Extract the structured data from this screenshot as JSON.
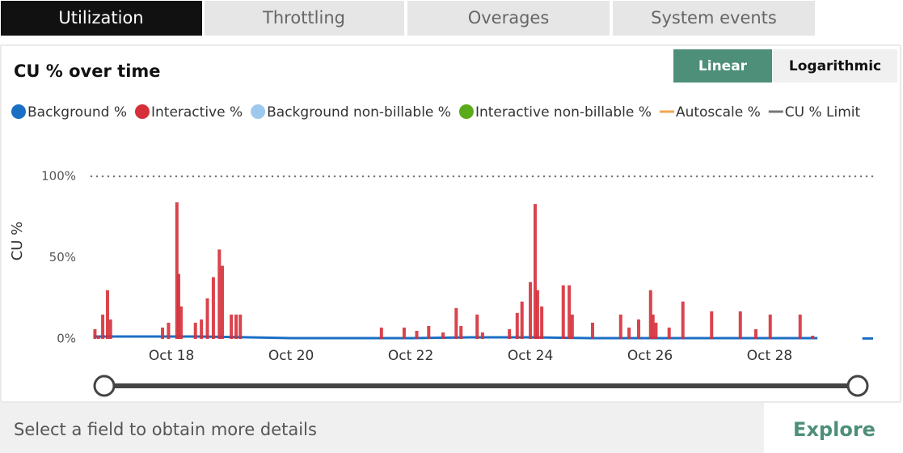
{
  "tabs": [
    "Utilization",
    "Throttling",
    "Overages",
    "System events"
  ],
  "chart_data": {
    "type": "bar",
    "title": "CU % over time",
    "scale_options": [
      "Linear",
      "Logarithmic"
    ],
    "log_scale": false,
    "y_label": "CU %",
    "xlim": [
      16.66,
      29.73
    ],
    "xticks": [
      {
        "value": 18,
        "label": "Oct 18"
      },
      {
        "value": 20,
        "label": "Oct 20"
      },
      {
        "value": 22,
        "label": "Oct 22"
      },
      {
        "value": 24,
        "label": "Oct 24"
      },
      {
        "value": 26,
        "label": "Oct 26"
      },
      {
        "value": 28,
        "label": "Oct 28"
      }
    ],
    "ylim": [
      0,
      100
    ],
    "yticks": [
      {
        "value": 0,
        "label": "0%"
      },
      {
        "value": 50,
        "label": "50%"
      },
      {
        "value": 100,
        "label": "100%"
      }
    ],
    "series": [
      {
        "name": "Background %",
        "color": "#1a6fc4",
        "marker": "circle",
        "kind": "line",
        "x": [
          16.7,
          17.5,
          18.5,
          19.3,
          20,
          21,
          22,
          23,
          24,
          25,
          26,
          27,
          28,
          28.8,
          29.3,
          29.55,
          29.73
        ],
        "values": [
          1.5,
          1.5,
          1.5,
          1,
          0.5,
          0.5,
          0.5,
          1,
          1,
          0.5,
          0.5,
          0.5,
          0.5,
          0.5,
          null,
          0.3,
          0.3
        ]
      },
      {
        "name": "Interactive %",
        "color": "#d5303a",
        "marker": "circle",
        "kind": "bar",
        "x": [
          16.72,
          16.78,
          16.85,
          16.93,
          16.98,
          17.85,
          17.95,
          18.09,
          18.12,
          18.16,
          18.4,
          18.5,
          18.6,
          18.7,
          18.8,
          18.85,
          19.0,
          19.08,
          19.15,
          21.51,
          21.89,
          22.1,
          22.3,
          22.54,
          22.76,
          22.84,
          23.11,
          23.2,
          23.65,
          23.78,
          23.86,
          24.0,
          24.08,
          24.12,
          24.19,
          24.55,
          24.65,
          24.7,
          25.04,
          25.51,
          25.65,
          25.81,
          26.01,
          26.05,
          26.1,
          26.32,
          26.55,
          27.03,
          27.51,
          27.77,
          28.01,
          28.51,
          28.72
        ],
        "values": [
          6,
          2,
          15,
          30,
          12,
          7,
          10,
          84,
          40,
          20,
          10,
          12,
          25,
          38,
          55,
          45,
          15,
          15,
          15,
          7,
          7,
          5,
          8,
          4,
          19,
          8,
          15,
          4,
          6,
          16,
          23,
          35,
          83,
          30,
          20,
          33,
          33,
          15,
          10,
          15,
          7,
          12,
          30,
          15,
          10,
          7,
          23,
          17,
          17,
          6,
          15,
          15,
          2
        ]
      },
      {
        "name": "Background non-billable %",
        "color": "#9fc9ec",
        "marker": "circle",
        "kind": "line",
        "x": [],
        "values": []
      },
      {
        "name": "Interactive non-billable %",
        "color": "#5aab1b",
        "marker": "circle",
        "kind": "line",
        "x": [],
        "values": []
      },
      {
        "name": "Autoscale %",
        "color": "#f2a550",
        "marker": "line",
        "kind": "line",
        "x": [],
        "values": []
      },
      {
        "name": "CU % Limit",
        "color": "#777777",
        "marker": "line",
        "kind": "dotted",
        "x": [
          16.66,
          29.73
        ],
        "values": [
          100,
          100
        ]
      }
    ]
  },
  "footer": {
    "text": "Select a field to obtain more details",
    "button": "Explore"
  }
}
